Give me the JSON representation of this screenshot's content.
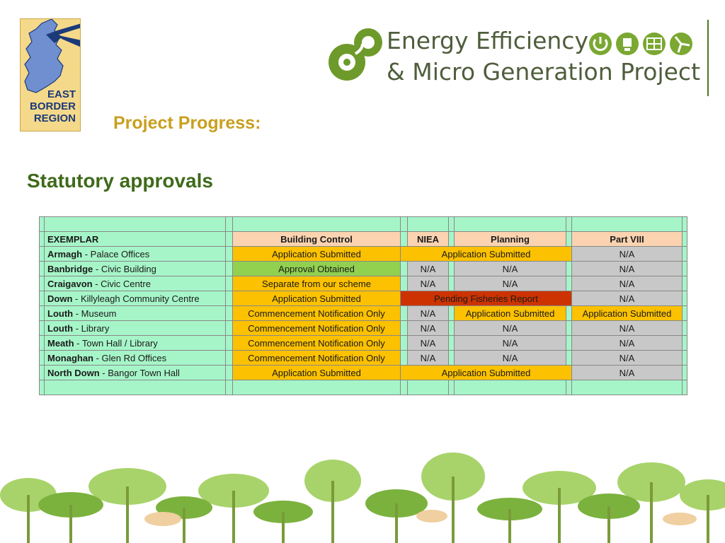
{
  "logos": {
    "left": {
      "line1": "EAST",
      "line2": "BORDER",
      "line3": "REGION"
    },
    "right": {
      "line1": "Energy Efficiency",
      "line2": "& Micro Generation Project"
    }
  },
  "title": "Project Progress:",
  "subtitle": "Statutory approvals",
  "colors": {
    "submitted": "#fcc100",
    "obtained": "#92d050",
    "na": "#c8c8c8",
    "pending": "#cc3300",
    "header": "#fbd3b0",
    "row": "#a6f5c8",
    "title": "#c8a020",
    "subtitle": "#3e6a1a"
  },
  "table": {
    "headers": {
      "exemplar": "EXEMPLAR",
      "building_control": "Building Control",
      "niea": "NIEA",
      "planning": "Planning",
      "part_viii": "Part VIII"
    },
    "rows": [
      {
        "place": "Armagh",
        "building": " - Palace Offices",
        "bc": "Application Submitted",
        "bc_status": "submitted",
        "niea_planning": "Application Submitted",
        "np_status": "submitted",
        "part_viii": "N/A",
        "p8_status": "na"
      },
      {
        "place": "Banbridge",
        "building": " - Civic Building",
        "bc": "Approval Obtained",
        "bc_status": "obtained",
        "niea": "N/A",
        "niea_status": "na",
        "planning": "N/A",
        "planning_status": "na",
        "part_viii": "N/A",
        "p8_status": "na"
      },
      {
        "place": "Craigavon",
        "building": " - Civic Centre",
        "bc": "Separate from our scheme",
        "bc_status": "submitted",
        "niea": "N/A",
        "niea_status": "na",
        "planning": "N/A",
        "planning_status": "na",
        "part_viii": "N/A",
        "p8_status": "na"
      },
      {
        "place": "Down",
        "building": " - Killyleagh Community Centre",
        "bc": "Application Submitted",
        "bc_status": "submitted",
        "niea_planning": "Pending Fisheries Report",
        "np_status": "pending",
        "part_viii": "N/A",
        "p8_status": "na"
      },
      {
        "place": "Louth",
        "building": " - Museum",
        "bc": "Commencement Notification Only",
        "bc_status": "submitted",
        "niea": "N/A",
        "niea_status": "na",
        "planning": "Application Submitted",
        "planning_status": "submitted",
        "part_viii": "Application Submitted",
        "p8_status": "submitted"
      },
      {
        "place": "Louth",
        "building": " - Library",
        "bc": "Commencement Notification Only",
        "bc_status": "submitted",
        "niea": "N/A",
        "niea_status": "na",
        "planning": "N/A",
        "planning_status": "na",
        "part_viii": "N/A",
        "p8_status": "na"
      },
      {
        "place": "Meath",
        "building": " - Town Hall / Library",
        "bc": "Commencement Notification Only",
        "bc_status": "submitted",
        "niea": "N/A",
        "niea_status": "na",
        "planning": "N/A",
        "planning_status": "na",
        "part_viii": "N/A",
        "p8_status": "na"
      },
      {
        "place": "Monaghan",
        "building": " - Glen Rd Offices",
        "bc": "Commencement Notification Only",
        "bc_status": "submitted",
        "niea": "N/A",
        "niea_status": "na",
        "planning": "N/A",
        "planning_status": "na",
        "part_viii": "N/A",
        "p8_status": "na"
      },
      {
        "place": "North Down",
        "building": " - Bangor Town Hall",
        "bc": "Application Submitted",
        "bc_status": "submitted",
        "niea_planning": "Application Submitted",
        "np_status": "submitted",
        "part_viii": "N/A",
        "p8_status": "na"
      }
    ]
  }
}
